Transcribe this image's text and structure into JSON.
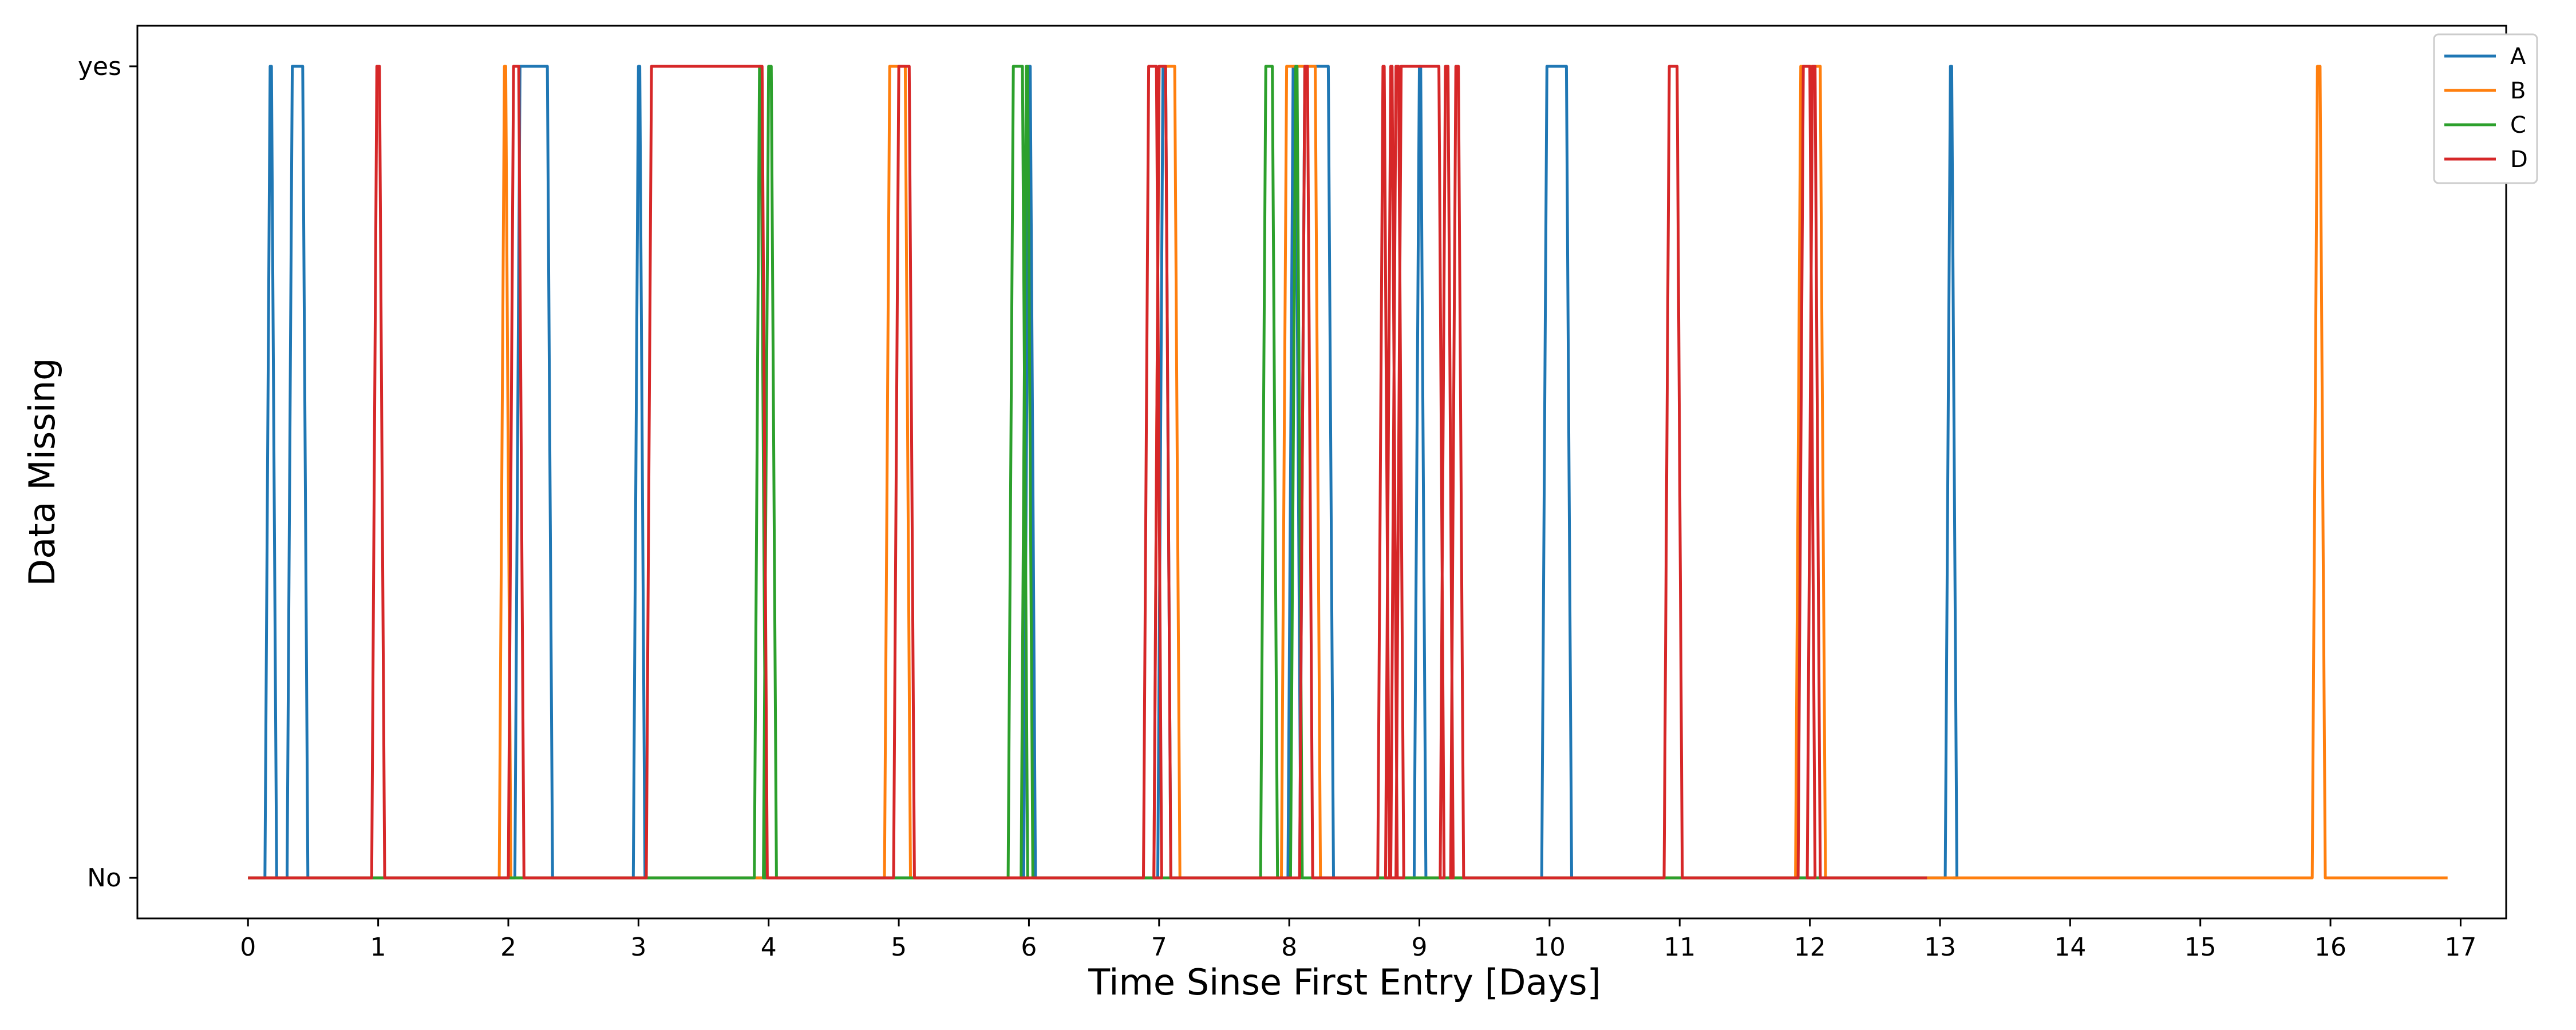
{
  "chart_data": {
    "type": "line",
    "title": "",
    "xlabel": "Time Sinse First Entry [Days]",
    "ylabel": "Data Missing",
    "xlim": [
      -0.85,
      17.35
    ],
    "ylim": [
      -0.05,
      1.05
    ],
    "x_ticks": [
      0,
      1,
      2,
      3,
      4,
      5,
      6,
      7,
      8,
      9,
      10,
      11,
      12,
      13,
      14,
      15,
      16,
      17
    ],
    "y_ticks": [
      {
        "value": 0,
        "label": "No"
      },
      {
        "value": 1,
        "label": "yes"
      }
    ],
    "grid": false,
    "legend": {
      "placement": "top-right"
    },
    "series": [
      {
        "name": "A",
        "color": "#1f77b4",
        "intervals": [
          [
            0.17,
            0.18
          ],
          [
            0.34,
            0.42
          ],
          [
            2.09,
            2.3
          ],
          [
            3.0,
            3.01
          ],
          [
            6.0,
            6.01
          ],
          [
            7.03,
            7.05
          ],
          [
            8.03,
            8.05
          ],
          [
            8.12,
            8.3
          ],
          [
            9.0,
            9.01
          ],
          [
            9.98,
            10.13
          ],
          [
            13.08,
            13.09
          ]
        ],
        "x_end": 13.1
      },
      {
        "name": "B",
        "color": "#ff7f0e",
        "intervals": [
          [
            1.97,
            1.98
          ],
          [
            4.93,
            5.05
          ],
          [
            7.0,
            7.12
          ],
          [
            7.98,
            8.2
          ],
          [
            11.93,
            12.08
          ],
          [
            15.9,
            15.92
          ]
        ],
        "x_end": 16.9
      },
      {
        "name": "C",
        "color": "#2ca02c",
        "intervals": [
          [
            3.93,
            3.94
          ],
          [
            4.0,
            4.02
          ],
          [
            5.88,
            5.95
          ],
          [
            5.98,
            5.99
          ],
          [
            7.82,
            7.87
          ],
          [
            8.05,
            8.06
          ]
        ],
        "x_end": 12.9
      },
      {
        "name": "D",
        "color": "#d62728",
        "intervals": [
          [
            0.99,
            1.01
          ],
          [
            2.04,
            2.08
          ],
          [
            3.1,
            3.95
          ],
          [
            5.0,
            5.08
          ],
          [
            6.92,
            6.98
          ],
          [
            7.0,
            7.05
          ],
          [
            8.12,
            8.14
          ],
          [
            8.72,
            8.73
          ],
          [
            8.78,
            8.79
          ],
          [
            8.82,
            8.84
          ],
          [
            8.86,
            9.15
          ],
          [
            9.2,
            9.22
          ],
          [
            9.28,
            9.3
          ],
          [
            10.92,
            10.98
          ],
          [
            11.95,
            12.0
          ],
          [
            12.02,
            12.04
          ]
        ],
        "x_end": 12.9
      }
    ]
  }
}
